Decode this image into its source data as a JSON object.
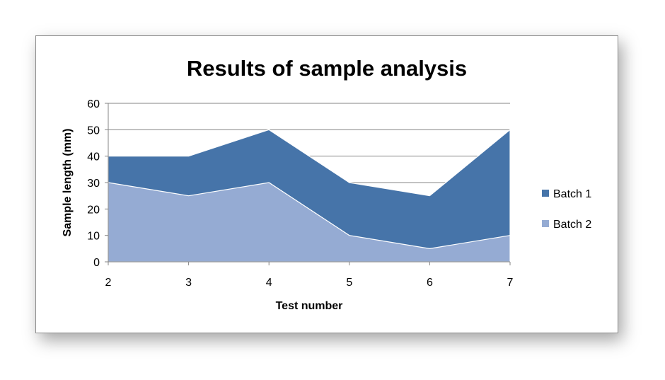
{
  "chart_data": {
    "type": "area",
    "title": "Results of sample analysis",
    "xlabel": "Test number",
    "ylabel": "Sample length (mm)",
    "x": [
      2,
      3,
      4,
      5,
      6,
      7
    ],
    "xlim": [
      2,
      7
    ],
    "ylim": [
      0,
      60
    ],
    "yticks": [
      0,
      10,
      20,
      30,
      40,
      50,
      60
    ],
    "grid": "horizontal",
    "legend": "right",
    "series": [
      {
        "name": "Batch 1",
        "values": [
          40,
          40,
          50,
          30,
          25,
          50
        ],
        "color": "#4674a9"
      },
      {
        "name": "Batch 2",
        "values": [
          30,
          25,
          30,
          10,
          5,
          10
        ],
        "color": "#95abd3"
      }
    ]
  }
}
